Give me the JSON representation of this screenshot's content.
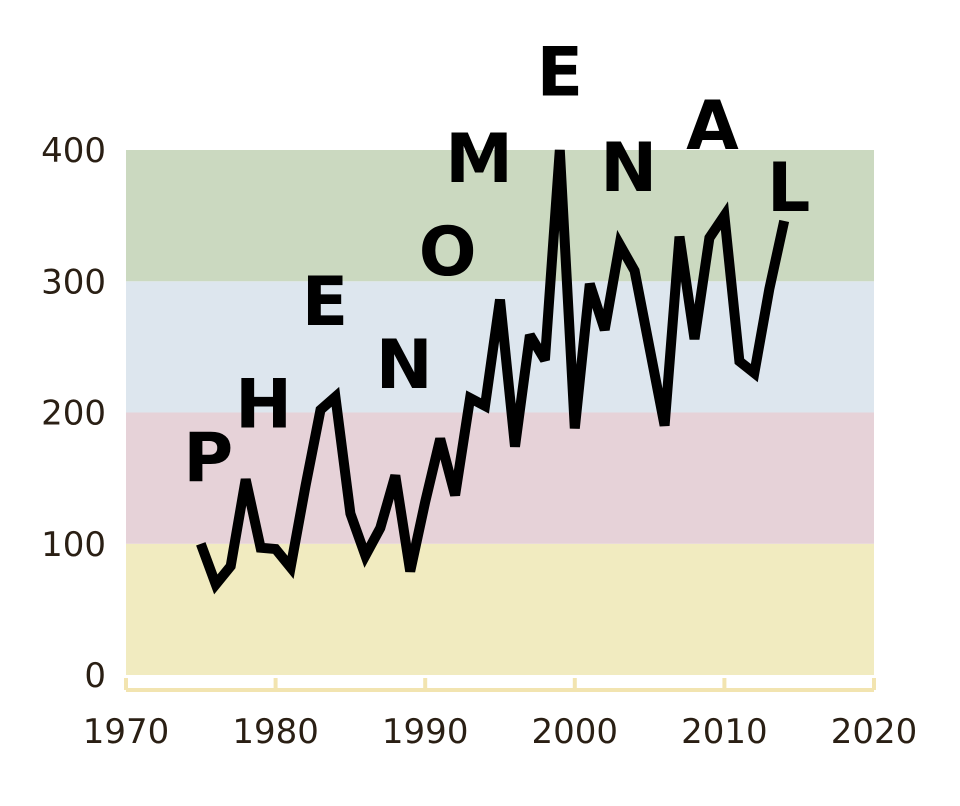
{
  "chart_data": {
    "type": "line",
    "xlim": [
      1970,
      2020
    ],
    "ylim": [
      0,
      400
    ],
    "x_ticks": [
      "1970",
      "1980",
      "1990",
      "2000",
      "2010",
      "2020"
    ],
    "y_ticks": [
      "0",
      "100",
      "200",
      "300",
      "400"
    ],
    "bands": [
      {
        "from": 0,
        "to": 100,
        "color": "#f1ebc0"
      },
      {
        "from": 100,
        "to": 200,
        "color": "#e6d2d8"
      },
      {
        "from": 200,
        "to": 300,
        "color": "#dde6ee"
      },
      {
        "from": 300,
        "to": 400,
        "color": "#cbd9c0"
      }
    ],
    "series": [
      {
        "color": "#000000",
        "x": [
          1975,
          1976,
          1977,
          1978,
          1979,
          1980,
          1981,
          1982,
          1983,
          1984,
          1985,
          1986,
          1987,
          1988,
          1989,
          1990,
          1991,
          1992,
          1993,
          1994,
          1995,
          1996,
          1997,
          1998,
          1999,
          2000,
          2001,
          2002,
          2003,
          2004,
          2005,
          2006,
          2007,
          2008,
          2009,
          2010,
          2011,
          2012,
          2013,
          2014
        ],
        "y": [
          100,
          69,
          83,
          149,
          97,
          96,
          82,
          144,
          202,
          212,
          123,
          91,
          112,
          152,
          79,
          132,
          180,
          137,
          211,
          205,
          286,
          174,
          259,
          240,
          400,
          188,
          298,
          263,
          328,
          308,
          249,
          190,
          334,
          256,
          333,
          350,
          239,
          230,
          294,
          346
        ]
      }
    ],
    "annotations": [
      {
        "text": "P",
        "x": 1975.5,
        "y": 166
      },
      {
        "text": "H",
        "x": 1979.2,
        "y": 207
      },
      {
        "text": "E",
        "x": 1983.3,
        "y": 285
      },
      {
        "text": "N",
        "x": 1988.6,
        "y": 237
      },
      {
        "text": "O",
        "x": 1991.5,
        "y": 323
      },
      {
        "text": "M",
        "x": 1993.6,
        "y": 394
      },
      {
        "text": "E",
        "x": 1999.0,
        "y": 460
      },
      {
        "text": "N",
        "x": 2003.6,
        "y": 387
      },
      {
        "text": "A",
        "x": 2009.2,
        "y": 419
      },
      {
        "text": "L",
        "x": 2014.3,
        "y": 372
      }
    ]
  }
}
